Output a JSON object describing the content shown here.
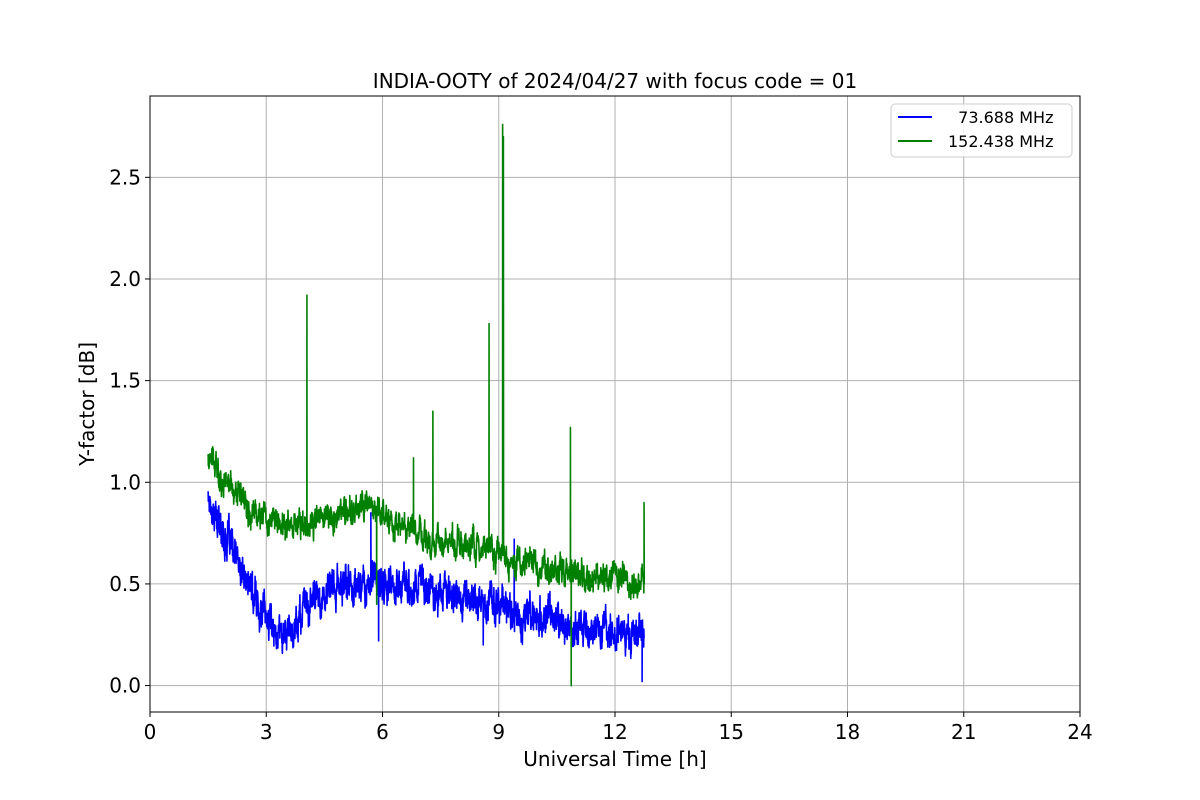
{
  "chart_data": {
    "type": "line",
    "title": "INDIA-OOTY of 2024/04/27 with focus code = 01",
    "xlabel": "Universal Time [h]",
    "ylabel": "Y-factor [dB]",
    "xlim": [
      0,
      24
    ],
    "ylim": [
      -0.13,
      2.9
    ],
    "xticks": [
      0,
      3,
      6,
      9,
      12,
      15,
      18,
      21,
      24
    ],
    "xtick_labels": [
      "0",
      "3",
      "6",
      "9",
      "12",
      "15",
      "18",
      "21",
      "24"
    ],
    "yticks": [
      0.0,
      0.5,
      1.0,
      1.5,
      2.0,
      2.5
    ],
    "ytick_labels": [
      "0.0",
      "0.5",
      "1.0",
      "1.5",
      "2.0",
      "2.5"
    ],
    "grid": true,
    "legend_position": "top-right",
    "series": [
      {
        "name": "  73.688 MHz",
        "color": "#0000ff",
        "points": [
          [
            1.5,
            0.95
          ],
          [
            1.75,
            0.8
          ],
          [
            2.0,
            0.72
          ],
          [
            2.25,
            0.6
          ],
          [
            2.5,
            0.5
          ],
          [
            2.75,
            0.42
          ],
          [
            3.0,
            0.34
          ],
          [
            3.25,
            0.28
          ],
          [
            3.5,
            0.26
          ],
          [
            3.75,
            0.3
          ],
          [
            4.0,
            0.38
          ],
          [
            4.25,
            0.42
          ],
          [
            4.5,
            0.45
          ],
          [
            4.75,
            0.47
          ],
          [
            5.0,
            0.5
          ],
          [
            5.25,
            0.5
          ],
          [
            5.5,
            0.5
          ],
          [
            5.75,
            0.52
          ],
          [
            6.0,
            0.5
          ],
          [
            6.25,
            0.48
          ],
          [
            6.5,
            0.5
          ],
          [
            6.75,
            0.5
          ],
          [
            7.0,
            0.5
          ],
          [
            7.25,
            0.48
          ],
          [
            7.5,
            0.47
          ],
          [
            7.75,
            0.46
          ],
          [
            8.0,
            0.45
          ],
          [
            8.25,
            0.43
          ],
          [
            8.5,
            0.42
          ],
          [
            8.75,
            0.4
          ],
          [
            9.0,
            0.4
          ],
          [
            9.25,
            0.38
          ],
          [
            9.5,
            0.36
          ],
          [
            9.75,
            0.35
          ],
          [
            10.0,
            0.33
          ],
          [
            10.25,
            0.32
          ],
          [
            10.5,
            0.32
          ],
          [
            10.75,
            0.3
          ],
          [
            11.0,
            0.3
          ],
          [
            11.25,
            0.3
          ],
          [
            11.5,
            0.28
          ],
          [
            11.75,
            0.28
          ],
          [
            12.0,
            0.27
          ],
          [
            12.25,
            0.27
          ],
          [
            12.5,
            0.26
          ],
          [
            12.75,
            0.28
          ]
        ],
        "noise": 0.09,
        "spikes": [
          [
            5.7,
            0.85
          ],
          [
            5.9,
            0.22
          ],
          [
            8.6,
            0.2
          ],
          [
            9.4,
            0.72
          ],
          [
            12.7,
            0.02
          ]
        ]
      },
      {
        "name": "152.438 MHz",
        "color": "#008000",
        "points": [
          [
            1.5,
            1.12
          ],
          [
            1.75,
            1.05
          ],
          [
            2.0,
            1.0
          ],
          [
            2.25,
            0.95
          ],
          [
            2.5,
            0.9
          ],
          [
            2.75,
            0.86
          ],
          [
            3.0,
            0.82
          ],
          [
            3.25,
            0.8
          ],
          [
            3.5,
            0.79
          ],
          [
            3.75,
            0.8
          ],
          [
            4.0,
            0.8
          ],
          [
            4.25,
            0.8
          ],
          [
            4.5,
            0.82
          ],
          [
            4.75,
            0.84
          ],
          [
            5.0,
            0.85
          ],
          [
            5.25,
            0.86
          ],
          [
            5.5,
            0.88
          ],
          [
            5.75,
            0.88
          ],
          [
            6.0,
            0.85
          ],
          [
            6.25,
            0.8
          ],
          [
            6.5,
            0.77
          ],
          [
            6.75,
            0.75
          ],
          [
            7.0,
            0.74
          ],
          [
            7.25,
            0.72
          ],
          [
            7.5,
            0.71
          ],
          [
            7.75,
            0.7
          ],
          [
            8.0,
            0.69
          ],
          [
            8.25,
            0.68
          ],
          [
            8.5,
            0.67
          ],
          [
            8.75,
            0.66
          ],
          [
            9.0,
            0.65
          ],
          [
            9.25,
            0.63
          ],
          [
            9.5,
            0.62
          ],
          [
            9.75,
            0.6
          ],
          [
            10.0,
            0.58
          ],
          [
            10.25,
            0.57
          ],
          [
            10.5,
            0.56
          ],
          [
            10.75,
            0.55
          ],
          [
            11.0,
            0.55
          ],
          [
            11.25,
            0.54
          ],
          [
            11.5,
            0.53
          ],
          [
            11.75,
            0.53
          ],
          [
            12.0,
            0.52
          ],
          [
            12.25,
            0.51
          ],
          [
            12.5,
            0.5
          ],
          [
            12.75,
            0.5
          ]
        ],
        "noise": 0.07,
        "spikes": [
          [
            4.05,
            1.92
          ],
          [
            6.8,
            1.12
          ],
          [
            7.3,
            1.35
          ],
          [
            8.75,
            1.78
          ],
          [
            9.1,
            2.76
          ],
          [
            9.12,
            2.7
          ],
          [
            10.85,
            1.27
          ],
          [
            10.87,
            0.0
          ],
          [
            12.75,
            0.9
          ],
          [
            5.85,
            0.4
          ]
        ]
      }
    ]
  }
}
